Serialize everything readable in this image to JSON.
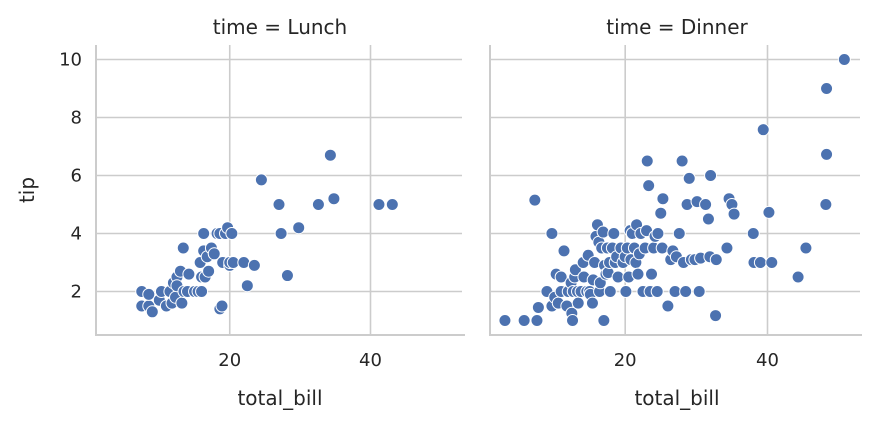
{
  "chart_data": [
    {
      "type": "scatter",
      "title": "time = Lunch",
      "xlabel": "total_bill",
      "ylabel": "tip",
      "xlim": [
        1,
        53
      ],
      "ylim": [
        0.5,
        10.5
      ],
      "xticks": [
        20,
        40
      ],
      "yticks": [
        2,
        4,
        6,
        8,
        10
      ],
      "grid": true,
      "point_color": "#4c72b0",
      "points": [
        [
          7.5,
          2.0
        ],
        [
          7.5,
          1.5
        ],
        [
          8.5,
          1.5
        ],
        [
          8.5,
          1.9
        ],
        [
          9.0,
          1.3
        ],
        [
          10.0,
          1.7
        ],
        [
          10.3,
          2.0
        ],
        [
          11.0,
          1.5
        ],
        [
          11.5,
          2.0
        ],
        [
          11.8,
          1.6
        ],
        [
          12.0,
          2.3
        ],
        [
          12.3,
          1.8
        ],
        [
          12.5,
          2.5
        ],
        [
          12.5,
          2.2
        ],
        [
          13.0,
          2.7
        ],
        [
          13.2,
          1.6
        ],
        [
          13.4,
          3.5
        ],
        [
          13.5,
          2.0
        ],
        [
          14.0,
          2.0
        ],
        [
          14.2,
          2.6
        ],
        [
          15.0,
          2.0
        ],
        [
          15.5,
          2.0
        ],
        [
          15.8,
          3.0
        ],
        [
          16.0,
          2.5
        ],
        [
          16.0,
          2.0
        ],
        [
          16.3,
          3.4
        ],
        [
          16.5,
          2.5
        ],
        [
          16.3,
          4.0
        ],
        [
          16.8,
          3.2
        ],
        [
          17.0,
          2.7
        ],
        [
          17.4,
          3.5
        ],
        [
          17.8,
          3.3
        ],
        [
          18.2,
          4.0
        ],
        [
          18.6,
          4.0
        ],
        [
          18.6,
          1.4
        ],
        [
          18.9,
          1.5
        ],
        [
          19.0,
          3.0
        ],
        [
          19.4,
          4.0
        ],
        [
          19.7,
          4.2
        ],
        [
          20.0,
          2.9
        ],
        [
          20.3,
          4.0
        ],
        [
          20.0,
          3.0
        ],
        [
          20.5,
          3.0
        ],
        [
          22.0,
          3.0
        ],
        [
          22.5,
          2.2
        ],
        [
          23.5,
          2.9
        ],
        [
          24.5,
          5.85
        ],
        [
          27.0,
          5.0
        ],
        [
          27.3,
          4.0
        ],
        [
          28.2,
          2.55
        ],
        [
          29.8,
          4.2
        ],
        [
          32.6,
          5.0
        ],
        [
          34.3,
          6.7
        ],
        [
          34.8,
          5.2
        ],
        [
          41.2,
          5.0
        ],
        [
          43.1,
          5.0
        ]
      ]
    },
    {
      "type": "scatter",
      "title": "time = Dinner",
      "xlabel": "total_bill",
      "ylabel": "",
      "xlim": [
        1,
        53
      ],
      "ylim": [
        0.5,
        10.5
      ],
      "xticks": [
        20,
        40
      ],
      "yticks": [
        2,
        4,
        6,
        8,
        10
      ],
      "grid": true,
      "point_color": "#4c72b0",
      "points": [
        [
          3.1,
          1.0
        ],
        [
          5.8,
          1.0
        ],
        [
          7.3,
          5.15
        ],
        [
          7.6,
          1.0
        ],
        [
          7.8,
          1.45
        ],
        [
          9.0,
          2.0
        ],
        [
          9.7,
          1.5
        ],
        [
          10.1,
          1.8
        ],
        [
          9.7,
          4.0
        ],
        [
          10.3,
          2.6
        ],
        [
          10.6,
          1.6
        ],
        [
          11.0,
          2.0
        ],
        [
          11.4,
          3.4
        ],
        [
          11.0,
          2.5
        ],
        [
          11.8,
          1.5
        ],
        [
          12.0,
          2.0
        ],
        [
          12.4,
          2.3
        ],
        [
          12.5,
          1.25
        ],
        [
          12.6,
          1.0
        ],
        [
          12.7,
          2.0
        ],
        [
          12.9,
          2.5
        ],
        [
          13.0,
          2.75
        ],
        [
          13.3,
          2.0
        ],
        [
          13.4,
          1.6
        ],
        [
          13.8,
          2.0
        ],
        [
          14.1,
          3.0
        ],
        [
          14.2,
          2.5
        ],
        [
          14.6,
          2.0
        ],
        [
          14.8,
          3.25
        ],
        [
          15.0,
          2.0
        ],
        [
          15.1,
          1.9
        ],
        [
          15.4,
          1.6
        ],
        [
          15.5,
          2.4
        ],
        [
          15.7,
          3.0
        ],
        [
          15.9,
          3.9
        ],
        [
          16.1,
          4.3
        ],
        [
          16.3,
          3.7
        ],
        [
          16.4,
          2.0
        ],
        [
          16.5,
          2.3
        ],
        [
          16.7,
          3.5
        ],
        [
          16.9,
          4.05
        ],
        [
          17.0,
          1.0
        ],
        [
          17.1,
          2.9
        ],
        [
          17.3,
          2.6
        ],
        [
          17.5,
          3.5
        ],
        [
          17.6,
          2.65
        ],
        [
          17.8,
          3.0
        ],
        [
          17.9,
          2.0
        ],
        [
          18.2,
          3.5
        ],
        [
          18.4,
          4.0
        ],
        [
          18.6,
          3.0
        ],
        [
          18.8,
          3.2
        ],
        [
          19.0,
          2.5
        ],
        [
          19.4,
          3.5
        ],
        [
          19.7,
          3.0
        ],
        [
          20.0,
          3.2
        ],
        [
          20.1,
          2.0
        ],
        [
          20.3,
          3.5
        ],
        [
          20.5,
          2.5
        ],
        [
          20.7,
          4.1
        ],
        [
          20.8,
          3.1
        ],
        [
          21.0,
          4.0
        ],
        [
          21.3,
          3.5
        ],
        [
          21.5,
          3.0
        ],
        [
          21.6,
          4.3
        ],
        [
          21.8,
          2.6
        ],
        [
          22.0,
          3.3
        ],
        [
          22.2,
          4.0
        ],
        [
          22.5,
          2.0
        ],
        [
          22.8,
          3.5
        ],
        [
          23.0,
          4.1
        ],
        [
          23.1,
          6.5
        ],
        [
          23.3,
          5.65
        ],
        [
          23.5,
          2.0
        ],
        [
          23.7,
          2.6
        ],
        [
          24.0,
          3.5
        ],
        [
          24.2,
          3.9
        ],
        [
          24.5,
          2.0
        ],
        [
          24.6,
          4.0
        ],
        [
          25.0,
          4.7
        ],
        [
          25.3,
          5.2
        ],
        [
          25.2,
          3.5
        ],
        [
          26.0,
          1.5
        ],
        [
          26.4,
          3.1
        ],
        [
          26.7,
          3.4
        ],
        [
          27.0,
          2.0
        ],
        [
          27.2,
          3.2
        ],
        [
          27.6,
          4.0
        ],
        [
          28.0,
          6.5
        ],
        [
          28.2,
          3.0
        ],
        [
          28.5,
          2.0
        ],
        [
          28.7,
          5.0
        ],
        [
          29.0,
          5.9
        ],
        [
          29.3,
          3.1
        ],
        [
          29.8,
          3.1
        ],
        [
          30.1,
          5.1
        ],
        [
          30.4,
          2.0
        ],
        [
          30.6,
          3.15
        ],
        [
          31.3,
          5.0
        ],
        [
          31.7,
          4.5
        ],
        [
          31.9,
          3.2
        ],
        [
          32.0,
          6.0
        ],
        [
          32.7,
          1.17
        ],
        [
          32.8,
          3.1
        ],
        [
          34.3,
          3.5
        ],
        [
          34.6,
          5.2
        ],
        [
          35.0,
          5.0
        ],
        [
          35.3,
          4.67
        ],
        [
          38.0,
          4.0
        ],
        [
          38.1,
          3.0
        ],
        [
          39.0,
          3.0
        ],
        [
          39.4,
          7.58
        ],
        [
          40.2,
          4.73
        ],
        [
          40.6,
          3.0
        ],
        [
          44.3,
          2.5
        ],
        [
          45.4,
          3.5
        ],
        [
          48.2,
          5.0
        ],
        [
          48.3,
          6.73
        ],
        [
          48.3,
          9.0
        ],
        [
          50.8,
          10.0
        ]
      ]
    }
  ]
}
